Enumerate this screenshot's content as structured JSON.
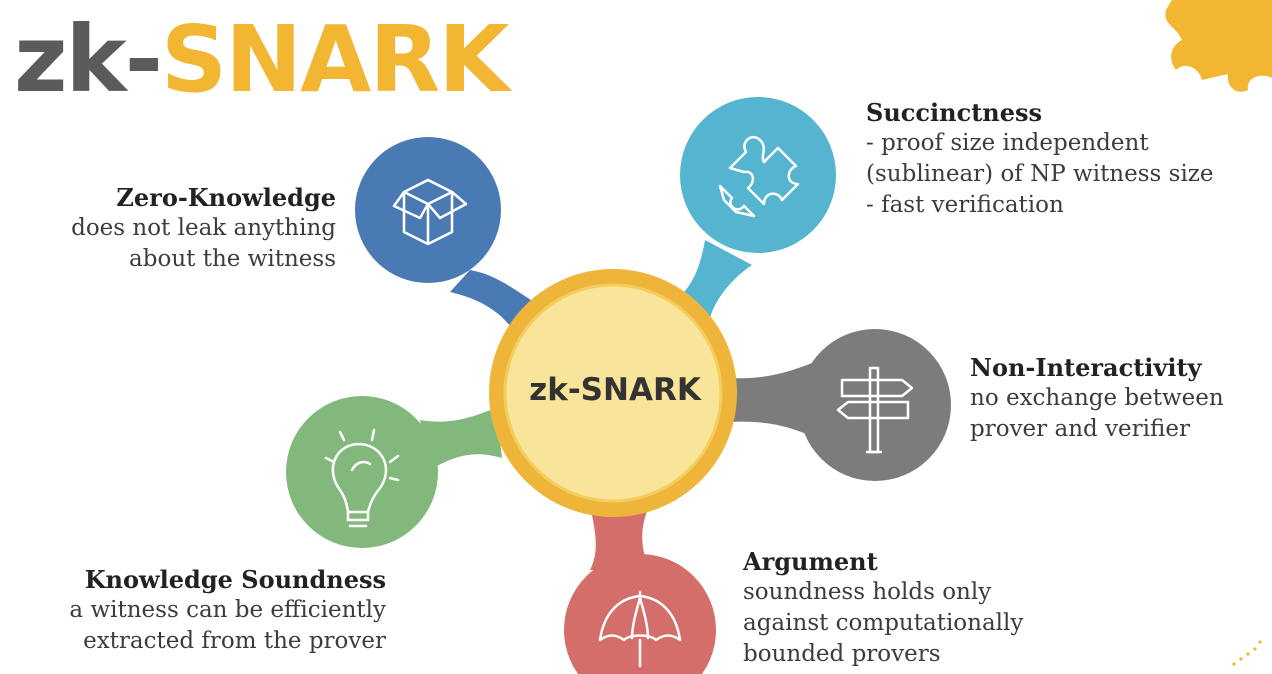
{
  "title": {
    "part1": "zk-",
    "part2": "SNARK"
  },
  "hub": {
    "label": "zk-SNARK"
  },
  "properties": {
    "zero_knowledge": {
      "heading": "Zero-Knowledge",
      "lines": [
        "does not leak anything",
        "about the witness"
      ],
      "color": "#4a7ab4"
    },
    "succinctness": {
      "heading": "Succinctness",
      "lines": [
        "- proof size independent",
        "(sublinear) of NP witness size",
        "- fast verification"
      ],
      "color": "#55b4cf"
    },
    "non_interactivity": {
      "heading": "Non-Interactivity",
      "lines": [
        "no exchange between",
        "prover and verifier"
      ],
      "color": "#7c7c7c"
    },
    "knowledge_soundness": {
      "heading": "Knowledge Soundness",
      "lines": [
        "a witness can be efficiently",
        "extracted from the prover"
      ],
      "color": "#82b87c"
    },
    "argument": {
      "heading": "Argument",
      "lines": [
        "soundness holds only",
        "against computationally",
        "bounded provers"
      ],
      "color": "#d46e6a"
    }
  },
  "icons": {
    "zero_knowledge": "box-icon",
    "succinctness": "puzzle-piece-icon",
    "non_interactivity": "signpost-icon",
    "knowledge_soundness": "lightbulb-icon",
    "argument": "umbrella-icon"
  },
  "colors": {
    "accent": "#f2b632",
    "hub_fill": "#f9e59a",
    "hub_ring": "#efb53a",
    "dark_text": "#5b5b5b"
  }
}
